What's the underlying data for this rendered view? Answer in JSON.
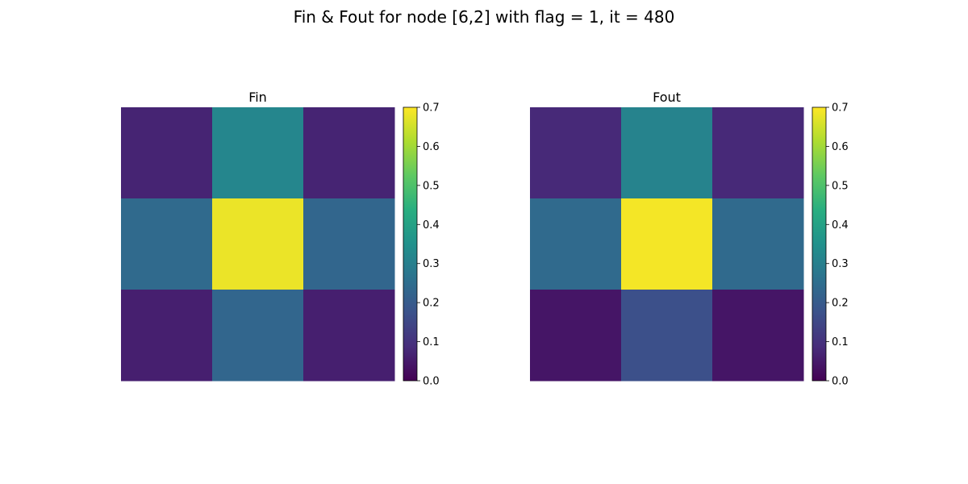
{
  "suptitle": "Fin & Fout for node [6,2] with flag = 1, it = 480",
  "chart_data": [
    {
      "type": "heatmap",
      "title": "Fin",
      "colormap": "viridis",
      "vmin": 0.0,
      "vmax": 0.7,
      "axes_visible": false,
      "values": [
        [
          0.07,
          0.32,
          0.07
        ],
        [
          0.24,
          0.68,
          0.23
        ],
        [
          0.06,
          0.23,
          0.06
        ]
      ],
      "colorbar": {
        "ticks": [
          "0.0",
          "0.1",
          "0.2",
          "0.3",
          "0.4",
          "0.5",
          "0.6",
          "0.7"
        ]
      }
    },
    {
      "type": "heatmap",
      "title": "Fout",
      "colormap": "viridis",
      "vmin": 0.0,
      "vmax": 0.7,
      "axes_visible": false,
      "values": [
        [
          0.08,
          0.31,
          0.08
        ],
        [
          0.24,
          0.69,
          0.24
        ],
        [
          0.04,
          0.17,
          0.04
        ]
      ],
      "colorbar": {
        "ticks": [
          "0.0",
          "0.1",
          "0.2",
          "0.3",
          "0.4",
          "0.5",
          "0.6",
          "0.7"
        ]
      }
    }
  ]
}
